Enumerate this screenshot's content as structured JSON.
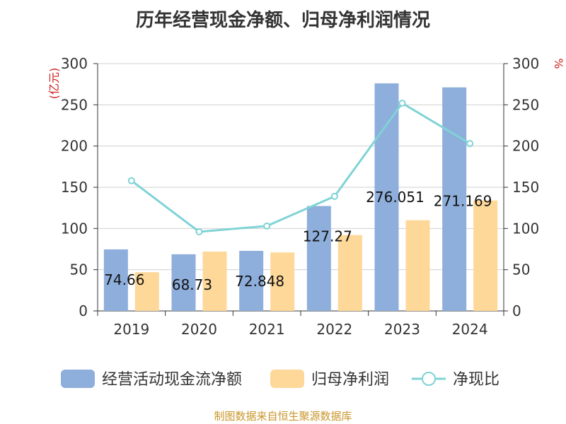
{
  "chart_data": {
    "type": "bar",
    "title": "历年经营现金净额、归母净利润情况",
    "categories": [
      "2019",
      "2020",
      "2021",
      "2022",
      "2023",
      "2024"
    ],
    "series": [
      {
        "name": "经营活动现金流净额",
        "kind": "bar",
        "axis": "left",
        "color": "#8eaedb",
        "values": [
          74.66,
          68.73,
          72.848,
          127.27,
          276.051,
          271.169
        ],
        "data_labels": [
          "74.66",
          "68.73",
          "72.848",
          "127.27",
          "276.051",
          "271.169"
        ]
      },
      {
        "name": "归母净利润",
        "kind": "bar",
        "axis": "left",
        "color": "#fdd899",
        "values": [
          47,
          72,
          71,
          92,
          110,
          134
        ]
      },
      {
        "name": "净现比",
        "kind": "line",
        "axis": "right",
        "color": "#7fd3d6",
        "values": [
          158,
          96,
          103,
          139,
          252,
          203
        ]
      }
    ],
    "left_axis": {
      "label": "(亿元)",
      "min": 0,
      "max": 300,
      "ticks": [
        0,
        50,
        100,
        150,
        200,
        250,
        300
      ]
    },
    "right_axis": {
      "label": "%",
      "min": 0,
      "max": 300,
      "ticks": [
        0,
        50,
        100,
        150,
        200,
        250,
        300
      ]
    },
    "legend_position": "bottom",
    "grid": true
  },
  "source_text": "制图数据来自恒生聚源数据库"
}
